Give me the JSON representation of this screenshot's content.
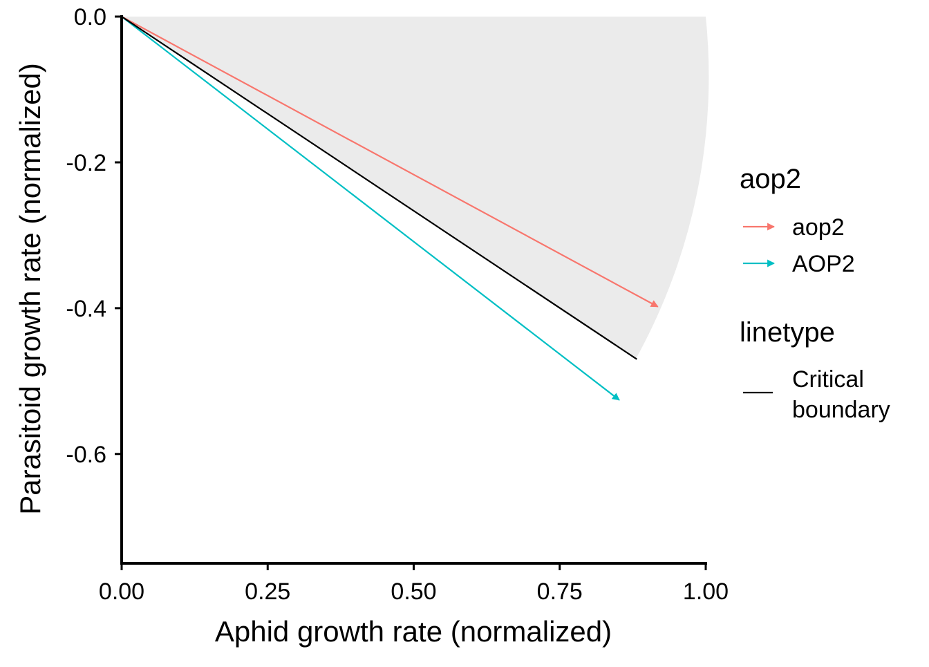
{
  "chart_data": {
    "type": "line",
    "xlabel": "Aphid growth rate (normalized)",
    "ylabel": "Parasitoid growth rate (normalized)",
    "xlim": [
      0,
      1
    ],
    "ylim": [
      -0.75,
      0
    ],
    "x_ticks": [
      0,
      0.25,
      0.5,
      0.75,
      1
    ],
    "x_tick_labels": [
      "0.00",
      "0.25",
      "0.50",
      "0.75",
      "1.00"
    ],
    "y_ticks": [
      0,
      -0.2,
      -0.4,
      -0.6
    ],
    "y_tick_labels": [
      "0.0",
      "-0.2",
      "-0.4",
      "-0.6"
    ],
    "grid": false,
    "shaded_region": {
      "description_label": "",
      "color": "#ebebeb",
      "boundary_start": [
        0.88,
        -0.47
      ],
      "arc_radius": 1.0
    },
    "series": [
      {
        "name": "aop2",
        "color": "#F8766D",
        "style": "arrow",
        "x": [
          0,
          0.918
        ],
        "y": [
          0,
          -0.398
        ]
      },
      {
        "name": "AOP2",
        "color": "#00BFC4",
        "style": "arrow",
        "x": [
          0,
          0.852
        ],
        "y": [
          0,
          -0.526
        ]
      },
      {
        "name": "Critical boundary",
        "color": "#000000",
        "style": "line",
        "x": [
          0,
          0.882
        ],
        "y": [
          0,
          -0.47
        ]
      }
    ],
    "legend": {
      "placement": "right",
      "groups": [
        {
          "title": "aop2",
          "items": [
            {
              "label": "aop2",
              "color": "#F8766D",
              "key": "arrow"
            },
            {
              "label": "AOP2",
              "color": "#00BFC4",
              "key": "arrow"
            }
          ]
        },
        {
          "title": "linetype",
          "items": [
            {
              "label_lines": [
                "Critical",
                "boundary"
              ],
              "color": "#000000",
              "key": "line"
            }
          ]
        }
      ]
    }
  }
}
